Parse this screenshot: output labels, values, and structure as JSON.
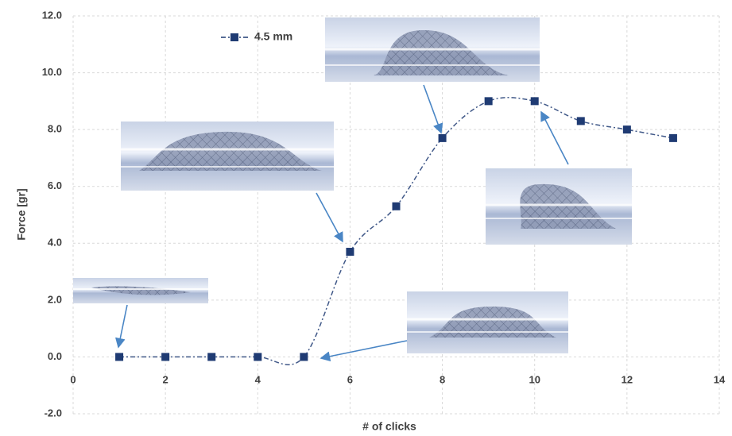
{
  "chart_data": {
    "type": "scatter",
    "x_label": "# of clicks",
    "y_label": "Force [gr]",
    "x": [
      1,
      2,
      3,
      4,
      5,
      6,
      7,
      8,
      9,
      10,
      11,
      12,
      13
    ],
    "series": [
      {
        "name": "4.5 mm",
        "color": "#1f3b73",
        "values": [
          0,
          0,
          0,
          0,
          0,
          3.7,
          5.3,
          7.7,
          9.0,
          9.0,
          8.3,
          8.0,
          7.7
        ]
      }
    ],
    "xlim": [
      0,
      14
    ],
    "xticks": [
      0,
      2,
      4,
      6,
      8,
      10,
      12,
      14
    ],
    "ylim": [
      -2,
      12
    ],
    "yticks": [
      {
        "value": -2,
        "label": "-2.0"
      },
      {
        "value": 0,
        "label": "0.0"
      },
      {
        "value": 2,
        "label": "2.0"
      },
      {
        "value": 4,
        "label": "4.0"
      },
      {
        "value": 6,
        "label": "6.0"
      },
      {
        "value": 8,
        "label": "8.0"
      },
      {
        "value": 10,
        "label": "10.0"
      },
      {
        "value": 12,
        "label": "12.0"
      }
    ],
    "grid": true,
    "legend": "top-left"
  }
}
